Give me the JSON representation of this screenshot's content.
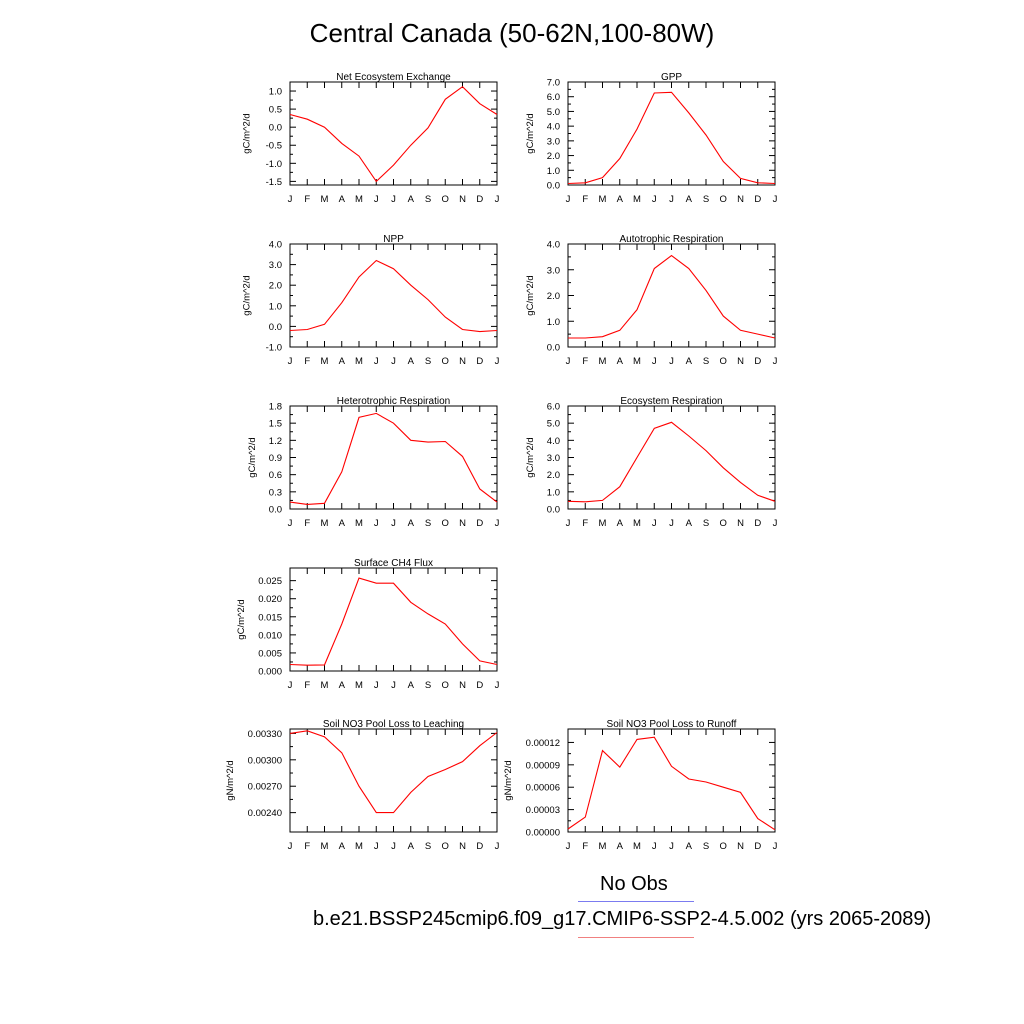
{
  "title": "Central Canada (50-62N,100-80W)",
  "legend": {
    "obs_label": "No Obs",
    "obs_color": "#7b7bf0",
    "case_label": "b.e21.BSSP245cmip6.f09_g17.CMIP6-SSP2-4.5.002 (yrs 2065-2089)",
    "case_color": "#f08080"
  },
  "line_color": "#ff0000",
  "chart_data": [
    {
      "type": "line",
      "title": "Net Ecosystem Exchange",
      "ylabel": "gC/m^2/d",
      "xlabel": "",
      "categories": [
        "J",
        "F",
        "M",
        "A",
        "M",
        "J",
        "J",
        "A",
        "S",
        "O",
        "N",
        "D",
        "J"
      ],
      "ylim": [
        -1.6,
        1.25
      ],
      "yticks": [
        1.0,
        0.5,
        0.0,
        -0.5,
        -1.0,
        -1.5
      ],
      "ytick_labels": [
        "1.0",
        "0.5",
        "0.0",
        "-0.5",
        "-1.0",
        "-1.5"
      ],
      "values": [
        0.35,
        0.22,
        0.0,
        -0.45,
        -0.8,
        -1.5,
        -1.05,
        -0.5,
        -0.02,
        0.77,
        1.12,
        0.65,
        0.35
      ]
    },
    {
      "type": "line",
      "title": "GPP",
      "ylabel": "gC/m^2/d",
      "xlabel": "",
      "categories": [
        "J",
        "F",
        "M",
        "A",
        "M",
        "J",
        "J",
        "A",
        "S",
        "O",
        "N",
        "D",
        "J"
      ],
      "ylim": [
        0,
        7.0
      ],
      "yticks": [
        7.0,
        6.0,
        5.0,
        4.0,
        3.0,
        2.0,
        1.0,
        0.0
      ],
      "ytick_labels": [
        "7.0",
        "6.0",
        "5.0",
        "4.0",
        "3.0",
        "2.0",
        "1.0",
        "0.0"
      ],
      "extra_minor": [
        0.5,
        1.5,
        2.5,
        3.5,
        4.5,
        5.5,
        6.5
      ],
      "values": [
        0.1,
        0.15,
        0.5,
        1.8,
        3.8,
        6.25,
        6.3,
        4.9,
        3.4,
        1.6,
        0.45,
        0.15,
        0.1
      ]
    },
    {
      "type": "line",
      "title": "NPP",
      "ylabel": "gC/m^2/d",
      "xlabel": "",
      "categories": [
        "J",
        "F",
        "M",
        "A",
        "M",
        "J",
        "J",
        "A",
        "S",
        "O",
        "N",
        "D",
        "J"
      ],
      "ylim": [
        -1.0,
        4.0
      ],
      "yticks": [
        4.0,
        3.0,
        2.0,
        1.0,
        0.0,
        -1.0
      ],
      "ytick_labels": [
        "4.0",
        "3.0",
        "2.0",
        "1.0",
        "0.0",
        "-1.0"
      ],
      "values": [
        -0.2,
        -0.15,
        0.1,
        1.15,
        2.4,
        3.2,
        2.8,
        2.0,
        1.3,
        0.45,
        -0.15,
        -0.25,
        -0.2
      ]
    },
    {
      "type": "line",
      "title": "Autotrophic Respiration",
      "ylabel": "gC/m^2/d",
      "xlabel": "",
      "categories": [
        "J",
        "F",
        "M",
        "A",
        "M",
        "J",
        "J",
        "A",
        "S",
        "O",
        "N",
        "D",
        "J"
      ],
      "ylim": [
        0,
        4.0
      ],
      "yticks": [
        4.0,
        3.0,
        2.0,
        1.0,
        0.0
      ],
      "ytick_labels": [
        "4.0",
        "3.0",
        "2.0",
        "1.0",
        "0.0"
      ],
      "values": [
        0.35,
        0.35,
        0.4,
        0.65,
        1.45,
        3.05,
        3.55,
        3.05,
        2.2,
        1.2,
        0.65,
        0.5,
        0.35
      ]
    },
    {
      "type": "line",
      "title": "Heterotrophic Respiration",
      "ylabel": "gC/m^2/d",
      "xlabel": "",
      "categories": [
        "J",
        "F",
        "M",
        "A",
        "M",
        "J",
        "J",
        "A",
        "S",
        "O",
        "N",
        "D",
        "J"
      ],
      "ylim": [
        0,
        1.8
      ],
      "yticks": [
        1.8,
        1.5,
        1.2,
        0.9,
        0.6,
        0.3,
        0.0
      ],
      "ytick_labels": [
        "1.8",
        "1.5",
        "1.2",
        "0.9",
        "0.6",
        "0.3",
        "0.0"
      ],
      "values": [
        0.12,
        0.08,
        0.1,
        0.65,
        1.6,
        1.67,
        1.5,
        1.2,
        1.17,
        1.18,
        0.92,
        0.35,
        0.12
      ]
    },
    {
      "type": "line",
      "title": "Ecosystem Respiration",
      "ylabel": "gC/m^2/d",
      "xlabel": "",
      "categories": [
        "J",
        "F",
        "M",
        "A",
        "M",
        "J",
        "J",
        "A",
        "S",
        "O",
        "N",
        "D",
        "J"
      ],
      "ylim": [
        0,
        6.0
      ],
      "yticks": [
        6.0,
        5.0,
        4.0,
        3.0,
        2.0,
        1.0,
        0.0
      ],
      "ytick_labels": [
        "6.0",
        "5.0",
        "4.0",
        "3.0",
        "2.0",
        "1.0",
        "0.0"
      ],
      "values": [
        0.45,
        0.42,
        0.5,
        1.3,
        3.0,
        4.7,
        5.05,
        4.25,
        3.4,
        2.4,
        1.55,
        0.8,
        0.45
      ]
    },
    {
      "type": "line",
      "title": "Surface CH4 Flux",
      "ylabel": "gC/m^2/d",
      "xlabel": "",
      "categories": [
        "J",
        "F",
        "M",
        "A",
        "M",
        "J",
        "J",
        "A",
        "S",
        "O",
        "N",
        "D",
        "J"
      ],
      "ylim": [
        0,
        0.0285
      ],
      "yticks": [
        0.025,
        0.02,
        0.015,
        0.01,
        0.005,
        0.0
      ],
      "ytick_labels": [
        "0.025",
        "0.020",
        "0.015",
        "0.010",
        "0.005",
        "0.000"
      ],
      "values": [
        0.0018,
        0.0016,
        0.0017,
        0.013,
        0.0257,
        0.0243,
        0.0243,
        0.019,
        0.0158,
        0.013,
        0.0075,
        0.0028,
        0.0018
      ]
    },
    {
      "type": "line",
      "title": "Soil NO3 Pool Loss to Leaching",
      "ylabel": "gN/m^2/d",
      "xlabel": "",
      "categories": [
        "J",
        "F",
        "M",
        "A",
        "M",
        "J",
        "J",
        "A",
        "S",
        "O",
        "N",
        "D",
        "J"
      ],
      "ylim": [
        0.00218,
        0.00335
      ],
      "yticks": [
        0.0033,
        0.003,
        0.0027,
        0.0024
      ],
      "ytick_labels": [
        "0.00330",
        "0.00300",
        "0.00270",
        "0.00240"
      ],
      "values": [
        0.0033,
        0.00333,
        0.00326,
        0.00308,
        0.0027,
        0.0024,
        0.0024,
        0.00263,
        0.00281,
        0.00289,
        0.00298,
        0.00316,
        0.00331
      ]
    },
    {
      "type": "line",
      "title": "Soil NO3 Pool Loss to Runoff",
      "ylabel": "gN/m^2/d",
      "xlabel": "",
      "categories": [
        "J",
        "F",
        "M",
        "A",
        "M",
        "J",
        "J",
        "A",
        "S",
        "O",
        "N",
        "D",
        "J"
      ],
      "ylim": [
        0,
        0.000138
      ],
      "yticks": [
        0.00012,
        9e-05,
        6e-05,
        3e-05,
        0.0
      ],
      "ytick_labels": [
        "0.00012",
        "0.00009",
        "0.00006",
        "0.00003",
        "0.00000"
      ],
      "values": [
        4e-06,
        2e-05,
        0.000109,
        8.7e-05,
        0.000124,
        0.000127,
        8.8e-05,
        7.1e-05,
        6.7e-05,
        6e-05,
        5.3e-05,
        1.8e-05,
        3e-06
      ]
    }
  ]
}
